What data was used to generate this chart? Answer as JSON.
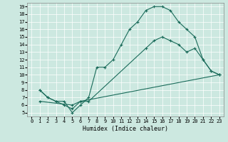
{
  "xlabel": "Humidex (Indice chaleur)",
  "bg_color": "#cce8e0",
  "grid_color": "#ffffff",
  "line_color": "#1a6b5a",
  "xlim": [
    -0.5,
    23.5
  ],
  "ylim": [
    4.5,
    19.5
  ],
  "xticks": [
    0,
    1,
    2,
    3,
    4,
    5,
    6,
    7,
    8,
    9,
    10,
    11,
    12,
    13,
    14,
    15,
    16,
    17,
    18,
    19,
    20,
    21,
    22,
    23
  ],
  "yticks": [
    5,
    6,
    7,
    8,
    9,
    10,
    11,
    12,
    13,
    14,
    15,
    16,
    17,
    18,
    19
  ],
  "curve1_x": [
    1,
    2,
    3,
    4,
    5,
    6,
    7,
    8,
    9,
    10,
    11,
    12,
    13,
    14,
    15,
    16,
    17,
    18,
    19,
    20,
    21,
    22,
    23
  ],
  "curve1_y": [
    8,
    7,
    6.5,
    6.5,
    5,
    6,
    7,
    11,
    11,
    12,
    14,
    16,
    17,
    18.5,
    19,
    19,
    18.5,
    17,
    16,
    15,
    12,
    10.5,
    10
  ],
  "curve2_x": [
    1,
    2,
    3,
    4,
    5,
    6,
    7,
    14,
    15,
    16,
    17,
    18,
    19,
    20,
    21,
    22,
    23
  ],
  "curve2_y": [
    8,
    7,
    6.5,
    6,
    5.5,
    6.5,
    6.5,
    13.5,
    14.5,
    15,
    14.5,
    14,
    13,
    13.5,
    12,
    10.5,
    10
  ],
  "curve3_x": [
    1,
    5,
    6,
    23
  ],
  "curve3_y": [
    6.5,
    6,
    6.5,
    10
  ]
}
